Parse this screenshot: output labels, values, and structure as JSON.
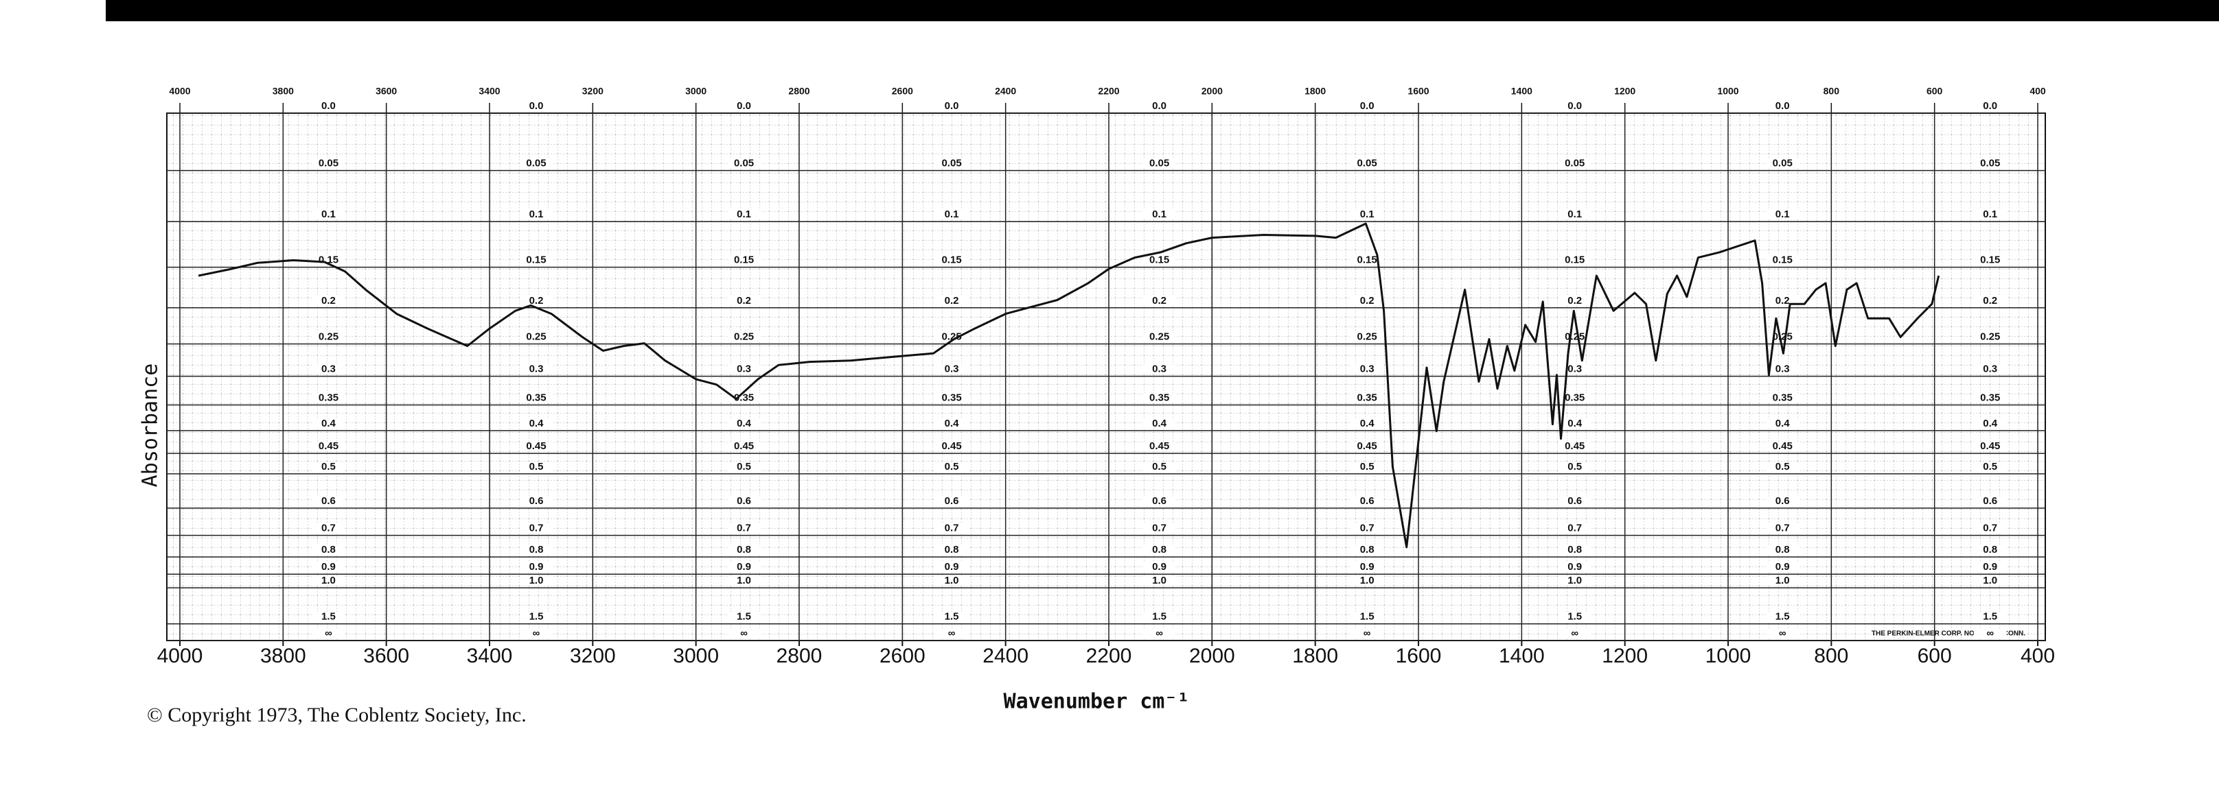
{
  "chart_data": {
    "type": "line",
    "y_label": "Absorbance",
    "x_label": "Wavenumber cm⁻¹",
    "copyright": "© Copyright 1973, The Coblentz Society, Inc.",
    "maker": "THE PERKIN-ELMER CORP. NORWALK, CONN.",
    "y_scale": "absorbance",
    "xlim": [
      4000,
      400
    ],
    "xticks": [
      4000,
      3800,
      3600,
      3400,
      3200,
      3000,
      2800,
      2600,
      2400,
      2200,
      2000,
      1800,
      1600,
      1400,
      1200,
      1000,
      800,
      600,
      400
    ],
    "ylim": [
      0,
      null
    ],
    "yticks": [
      {
        "value": 0,
        "label": "0.0"
      },
      0.05,
      0.1,
      0.15,
      0.2,
      0.25,
      0.3,
      0.35,
      0.4,
      0.45,
      0.5,
      0.6,
      0.7,
      0.8,
      0.9,
      {
        "value": 1,
        "label": "1.0"
      },
      1.5,
      {
        "value": null,
        "label": "∞"
      }
    ],
    "grid": true,
    "color": "#111111",
    "x": [
      3964,
      3900,
      3850,
      3780,
      3720,
      3680,
      3640,
      3580,
      3520,
      3443,
      3400,
      3350,
      3320,
      3280,
      3220,
      3180,
      3140,
      3100,
      3060,
      3000,
      2960,
      2922,
      2880,
      2840,
      2780,
      2700,
      2600,
      2540,
      2500,
      2460,
      2400,
      2300,
      2240,
      2200,
      2150,
      2100,
      2050,
      2000,
      1900,
      1800,
      1760,
      1702,
      1680,
      1667,
      1650,
      1623,
      1584,
      1565,
      1551,
      1510,
      1483,
      1463,
      1447,
      1428,
      1414,
      1393,
      1373,
      1359,
      1340,
      1332,
      1324,
      1310,
      1299,
      1283,
      1255,
      1222,
      1181,
      1159,
      1140,
      1118,
      1099,
      1080,
      1058,
      1017,
      948,
      934,
      921,
      907,
      893,
      880,
      852,
      830,
      811,
      792,
      770,
      751,
      729,
      688,
      666,
      633,
      605,
      592
    ],
    "values": [
      0.16,
      0.152,
      0.145,
      0.142,
      0.144,
      0.155,
      0.177,
      0.208,
      0.228,
      0.253,
      0.228,
      0.204,
      0.197,
      0.208,
      0.24,
      0.26,
      0.253,
      0.249,
      0.275,
      0.305,
      0.314,
      0.339,
      0.305,
      0.282,
      0.277,
      0.275,
      0.268,
      0.264,
      0.243,
      0.228,
      0.208,
      0.19,
      0.169,
      0.152,
      0.139,
      0.133,
      0.123,
      0.117,
      0.114,
      0.115,
      0.117,
      0.102,
      0.136,
      0.204,
      0.482,
      0.752,
      0.286,
      0.401,
      0.309,
      0.177,
      0.309,
      0.243,
      0.321,
      0.253,
      0.291,
      0.223,
      0.247,
      0.192,
      0.387,
      0.298,
      0.417,
      0.264,
      0.204,
      0.275,
      0.16,
      0.204,
      0.181,
      0.195,
      0.275,
      0.182,
      0.16,
      0.186,
      0.139,
      0.133,
      0.12,
      0.169,
      0.298,
      0.214,
      0.264,
      0.195,
      0.195,
      0.177,
      0.169,
      0.253,
      0.177,
      0.169,
      0.214,
      0.214,
      0.24,
      0.214,
      0.195,
      0.16
    ]
  }
}
